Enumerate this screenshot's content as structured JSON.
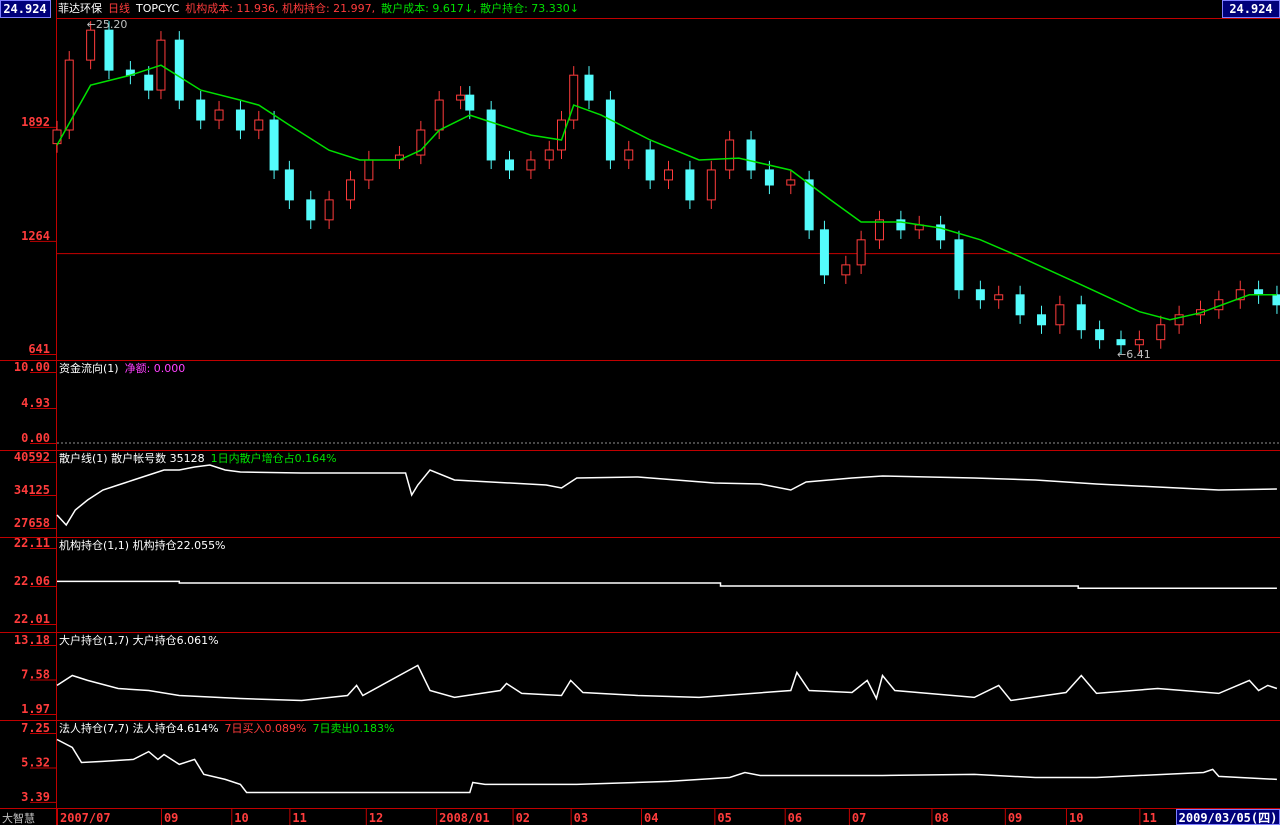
{
  "header": {
    "left_value": "24.924",
    "right_value": "24.924",
    "title_parts": [
      {
        "text": "菲达环保",
        "color": "#ffffff"
      },
      {
        "text": "日线",
        "color": "#ff3c3c"
      },
      {
        "text": "TOPCYC",
        "color": "#ffffff"
      },
      {
        "text": "机构成本: 11.936, 机构持仓: 21.997,",
        "color": "#ff3c3c"
      },
      {
        "text": "散户成本: 9.617↓, 散户持仓: 73.330↓",
        "color": "#00e000"
      }
    ]
  },
  "footer": {
    "brand": "大智慧",
    "date": "2009/03/05(四)"
  },
  "chart_data": [
    {
      "type": "candlestick",
      "up_color": "#ff3c3c",
      "down_color": "#54fcfc",
      "xlim": [
        0,
        400
      ],
      "xticks": [
        {
          "value": 0,
          "label": "2007/07"
        },
        {
          "value": 34,
          "label": "09"
        },
        {
          "value": 57,
          "label": "10"
        },
        {
          "value": 76,
          "label": "11"
        },
        {
          "value": 101,
          "label": "12"
        },
        {
          "value": 124,
          "label": "2008/01"
        },
        {
          "value": 149,
          "label": "02"
        },
        {
          "value": 168,
          "label": "03"
        },
        {
          "value": 191,
          "label": "04"
        },
        {
          "value": 215,
          "label": "05"
        },
        {
          "value": 238,
          "label": "06"
        },
        {
          "value": 259,
          "label": "07"
        },
        {
          "value": 286,
          "label": "08"
        },
        {
          "value": 310,
          "label": "09"
        },
        {
          "value": 330,
          "label": "10"
        },
        {
          "value": 354,
          "label": "11"
        }
      ],
      "ylim": [
        608,
        2492
      ],
      "yticks": [
        641,
        1264,
        1892
      ],
      "reference_line": 1194,
      "reference_color": "#c80000",
      "high_label": "←25.20",
      "low_label": "←6.41",
      "x": [
        0,
        4,
        11,
        17,
        24,
        30,
        34,
        40,
        47,
        53,
        60,
        66,
        71,
        76,
        83,
        89,
        96,
        102,
        112,
        119,
        125,
        132,
        135,
        142,
        148,
        155,
        161,
        165,
        169,
        174,
        181,
        187,
        194,
        200,
        207,
        214,
        220,
        227,
        233,
        240,
        246,
        251,
        258,
        263,
        269,
        276,
        282,
        289,
        295,
        302,
        308,
        315,
        322,
        328,
        335,
        341,
        348,
        354,
        361,
        367,
        374,
        380,
        387,
        393,
        399
      ],
      "open": [
        1800,
        1875,
        2260,
        2425,
        2205,
        2177,
        2095,
        2370,
        2040,
        1930,
        1985,
        1875,
        1930,
        1655,
        1490,
        1380,
        1490,
        1600,
        1710,
        1737,
        1875,
        2040,
        2067,
        1985,
        1710,
        1655,
        1710,
        1765,
        1930,
        2177,
        2040,
        1710,
        1765,
        1600,
        1655,
        1490,
        1655,
        1820,
        1655,
        1572,
        1600,
        1325,
        1077,
        1132,
        1270,
        1380,
        1325,
        1352,
        1270,
        995,
        940,
        967,
        857,
        802,
        912,
        775,
        720,
        692,
        720,
        802,
        857,
        885,
        940,
        995,
        967
      ],
      "high": [
        1925,
        2310,
        2475,
        2475,
        2255,
        2227,
        2420,
        2420,
        2090,
        2035,
        2035,
        1980,
        1980,
        1705,
        1540,
        1540,
        1650,
        1760,
        1787,
        1925,
        2090,
        2117,
        2117,
        2035,
        1760,
        1760,
        1815,
        1980,
        2227,
        2227,
        2090,
        1815,
        1815,
        1705,
        1705,
        1705,
        1870,
        1870,
        1705,
        1650,
        1650,
        1375,
        1182,
        1320,
        1430,
        1430,
        1402,
        1402,
        1320,
        1045,
        1017,
        1017,
        907,
        962,
        962,
        825,
        770,
        770,
        852,
        907,
        935,
        990,
        1045,
        1045,
        1017
      ],
      "low": [
        1750,
        1825,
        2210,
        2155,
        2127,
        2045,
        2045,
        1990,
        1880,
        1880,
        1825,
        1825,
        1605,
        1440,
        1330,
        1330,
        1440,
        1550,
        1660,
        1687,
        1825,
        1990,
        1935,
        1660,
        1605,
        1605,
        1660,
        1715,
        1880,
        1990,
        1660,
        1660,
        1550,
        1550,
        1440,
        1440,
        1605,
        1605,
        1522,
        1522,
        1275,
        1027,
        1027,
        1082,
        1220,
        1275,
        1275,
        1220,
        945,
        890,
        890,
        807,
        752,
        752,
        725,
        670,
        641,
        642,
        670,
        752,
        807,
        835,
        890,
        917,
        862
      ],
      "close": [
        1875,
        2260,
        2425,
        2205,
        2177,
        2095,
        2370,
        2040,
        1930,
        1985,
        1875,
        1930,
        1655,
        1490,
        1380,
        1490,
        1600,
        1710,
        1737,
        1875,
        2040,
        2067,
        1985,
        1710,
        1655,
        1710,
        1765,
        1930,
        2177,
        2040,
        1710,
        1765,
        1600,
        1655,
        1490,
        1655,
        1820,
        1655,
        1572,
        1600,
        1325,
        1077,
        1132,
        1270,
        1380,
        1325,
        1352,
        1270,
        995,
        940,
        967,
        857,
        802,
        912,
        775,
        720,
        692,
        720,
        802,
        857,
        885,
        940,
        995,
        967,
        912
      ],
      "ma": {
        "color": "#00e000",
        "x": [
          0,
          11,
          24,
          34,
          47,
          60,
          66,
          76,
          89,
          99,
          112,
          119,
          125,
          135,
          145,
          155,
          165,
          169,
          178,
          194,
          210,
          223,
          240,
          253,
          263,
          276,
          289,
          302,
          315,
          335,
          354,
          364,
          374,
          390,
          399
        ],
        "values": [
          1792,
          2122,
          2177,
          2232,
          2095,
          2040,
          2012,
          1902,
          1764,
          1710,
          1710,
          1764,
          1874,
          1957,
          1902,
          1847,
          1820,
          2012,
          1957,
          1820,
          1710,
          1720,
          1654,
          1490,
          1368,
          1368,
          1335,
          1270,
          1176,
          1022,
          874,
          830,
          868,
          967,
          967
        ]
      }
    },
    {
      "type": "line",
      "title_parts": [
        {
          "text": "资金流向(1)",
          "color": "#ffffff"
        },
        {
          "text": "净额: 0.000",
          "color": "#ff40ff"
        }
      ],
      "ylim": [
        -0.7,
        11.69
      ],
      "yticks": [
        {
          "value": 10,
          "label": "10.00"
        },
        4.93,
        {
          "value": 0,
          "label": "0.00"
        }
      ],
      "baseline": 0
    },
    {
      "type": "line",
      "color": "#ffffff",
      "title_parts": [
        {
          "text": "散户线(1)  散户帐号数  35128",
          "color": "#ffffff"
        },
        {
          "text": "1日内散户增仓占0.164%",
          "color": "#00e000"
        }
      ],
      "ylim": [
        26286,
        42944
      ],
      "yticks": [
        40592,
        34125,
        27658
      ],
      "x": [
        0,
        3,
        6,
        10,
        15,
        20,
        25,
        30,
        35,
        40,
        45,
        50,
        55,
        60,
        80,
        100,
        114,
        116,
        118,
        122,
        130,
        160,
        165,
        170,
        190,
        215,
        230,
        240,
        245,
        260,
        270,
        300,
        320,
        340,
        360,
        380,
        399
      ],
      "values": [
        30205,
        28245,
        31185,
        33145,
        35105,
        36085,
        37065,
        38045,
        39025,
        39025,
        39613,
        40005,
        39025,
        38633,
        38437,
        38437,
        38437,
        34125,
        36085,
        39025,
        37065,
        36085,
        35497,
        37457,
        37653,
        36477,
        36281,
        35105,
        36673,
        37457,
        37849,
        37457,
        37065,
        36281,
        35693,
        35105,
        35301
      ]
    },
    {
      "type": "line",
      "color": "#ffffff",
      "title_parts": [
        {
          "text": "机构持仓(1,1)  机构持仓22.055%",
          "color": "#ffffff"
        }
      ],
      "ylim": [
        22.0021,
        22.1245
      ],
      "yticks": [
        22.11,
        22.06,
        22.01
      ],
      "x": [
        0,
        40,
        40,
        217,
        217,
        334,
        334,
        399
      ],
      "values": [
        22.066,
        22.066,
        22.064,
        22.064,
        22.06,
        22.06,
        22.057,
        22.057
      ]
    },
    {
      "type": "line",
      "color": "#ffffff",
      "title_parts": [
        {
          "text": "大户持仓(1,7)  大户持仓6.061%",
          "color": "#ffffff"
        }
      ],
      "ylim": [
        1.32,
        15.29
      ],
      "yticks": [
        13.18,
        7.58,
        1.97
      ],
      "x": [
        0,
        5,
        10,
        20,
        30,
        40,
        60,
        80,
        95,
        98,
        100,
        118,
        122,
        130,
        145,
        147,
        152,
        165,
        168,
        172,
        190,
        210,
        240,
        242,
        246,
        260,
        265,
        268,
        270,
        274,
        300,
        308,
        312,
        330,
        335,
        340,
        360,
        380,
        390,
        393,
        396,
        399
      ],
      "values": [
        6.61,
        8.23,
        7.42,
        6.12,
        5.79,
        4.98,
        4.49,
        4.17,
        4.98,
        6.61,
        4.98,
        9.86,
        5.79,
        4.66,
        5.79,
        6.93,
        5.31,
        4.98,
        7.42,
        5.47,
        4.98,
        4.66,
        5.79,
        8.72,
        5.79,
        5.47,
        7.42,
        4.49,
        8.23,
        5.79,
        4.66,
        6.61,
        4.17,
        5.47,
        8.23,
        5.31,
        6.12,
        5.31,
        7.42,
        5.79,
        6.61,
        6.12
      ]
    },
    {
      "type": "line",
      "color": "#ffffff",
      "title_parts": [
        {
          "text": "法人持仓(7,7)  法人持仓4.614%",
          "color": "#ffffff"
        },
        {
          "text": "7日买入0.089%",
          "color": "#ff3c3c"
        },
        {
          "text": "7日卖出0.183%",
          "color": "#00e000"
        }
      ],
      "ylim": [
        3.05,
        7.98
      ],
      "yticks": [
        7.25,
        5.32,
        3.39
      ],
      "x": [
        0,
        5,
        8,
        15,
        25,
        30,
        33,
        35,
        40,
        45,
        48,
        55,
        60,
        62,
        100,
        135,
        136,
        140,
        170,
        200,
        220,
        225,
        230,
        270,
        300,
        320,
        340,
        375,
        378,
        380,
        399
      ],
      "values": [
        6.89,
        6.44,
        5.6,
        5.66,
        5.77,
        6.21,
        5.77,
        6.05,
        5.49,
        5.77,
        4.93,
        4.65,
        4.37,
        3.92,
        3.92,
        3.92,
        4.48,
        4.37,
        4.37,
        4.54,
        4.76,
        5.04,
        4.87,
        4.87,
        4.93,
        4.76,
        4.76,
        5.04,
        5.21,
        4.82,
        4.65
      ]
    }
  ]
}
